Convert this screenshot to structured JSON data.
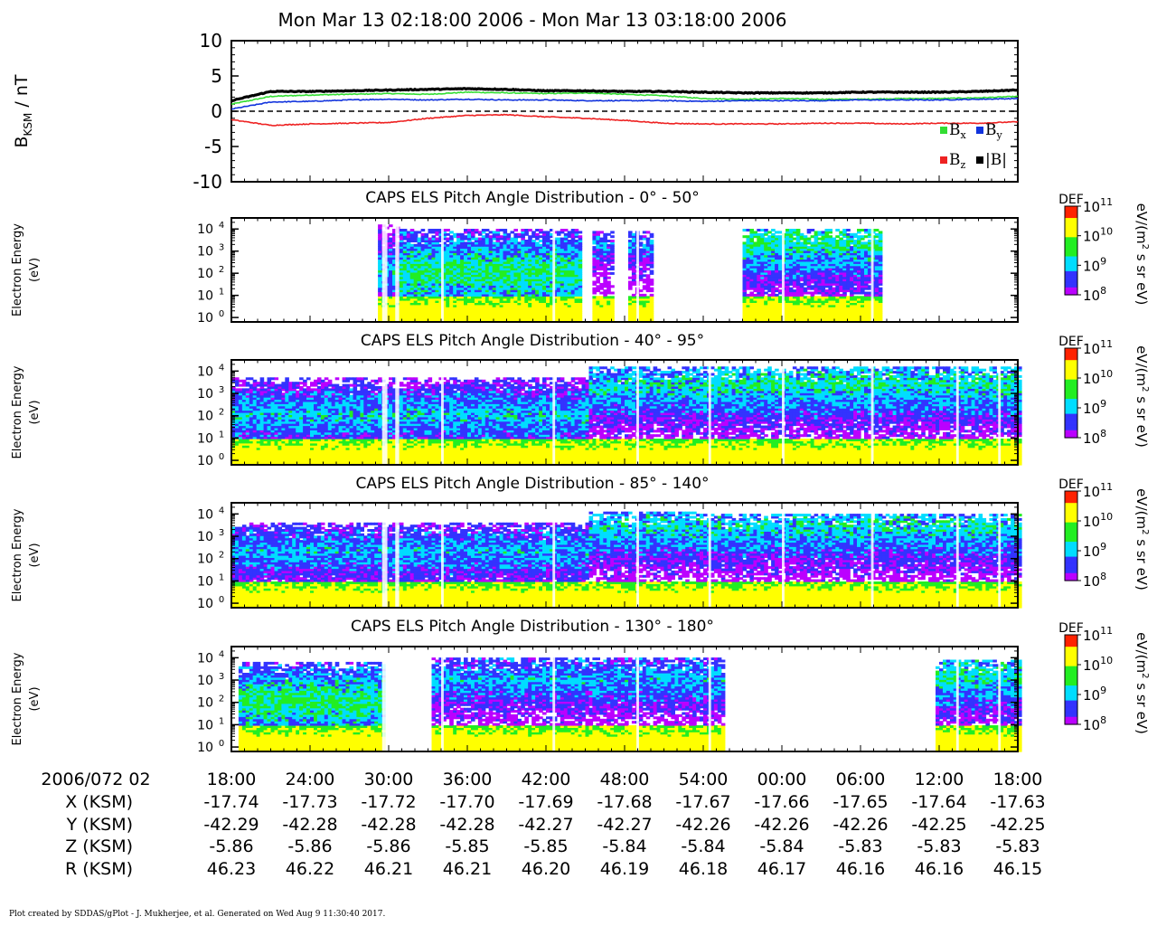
{
  "header": {
    "title": "Mon Mar 13 02:18:00 2006 - Mon Mar 13 03:18:00 2006"
  },
  "footer": {
    "text": "Plot created by SDDAS/gPlot - J. Mukherjee, et al.  Generated on Wed Aug 9 11:30:40 2017."
  },
  "colors": {
    "bx": "#33dd33",
    "by": "#1133dd",
    "bz": "#ee2222",
    "bmag": "#000000",
    "colormap": [
      "#bb00ff",
      "#3333ff",
      "#00ddff",
      "#22ee22",
      "#ffff00",
      "#ff2200"
    ]
  },
  "chart_data": [
    {
      "type": "line",
      "ylabel_main": "B",
      "ylabel_sub": "KSM",
      "ylabel_unit": " / nT",
      "ylim": [
        -10,
        10
      ],
      "y_ticks": [
        10,
        5,
        0,
        -5,
        -10
      ],
      "x_minutes": [
        0,
        3,
        6,
        9,
        12,
        15,
        18,
        21,
        24,
        27,
        30,
        33,
        36,
        39,
        42,
        45,
        48,
        51,
        54,
        57,
        60
      ],
      "reference_line": 0,
      "legend": [
        {
          "key": "bx",
          "main": "B",
          "sub": "x"
        },
        {
          "key": "by",
          "main": "B",
          "sub": "y"
        },
        {
          "key": "bz",
          "main": "B",
          "sub": "z"
        },
        {
          "key": "bmag",
          "main": "|B|",
          "sub": ""
        }
      ],
      "series": [
        {
          "key": "bx",
          "values": [
            1.0,
            2.1,
            2.3,
            2.4,
            2.5,
            2.4,
            2.7,
            2.6,
            2.5,
            2.6,
            2.4,
            2.2,
            1.8,
            1.7,
            1.8,
            1.7,
            1.7,
            1.8,
            1.8,
            1.9,
            2.1
          ]
        },
        {
          "key": "by",
          "values": [
            0.3,
            1.3,
            1.4,
            1.6,
            1.7,
            1.6,
            1.7,
            1.6,
            1.6,
            1.5,
            1.5,
            1.5,
            1.4,
            1.5,
            1.5,
            1.5,
            1.6,
            1.6,
            1.6,
            1.7,
            1.8
          ]
        },
        {
          "key": "bz",
          "values": [
            -1.2,
            -2.0,
            -1.8,
            -1.7,
            -1.6,
            -1.0,
            -0.6,
            -0.5,
            -0.8,
            -1.0,
            -1.3,
            -1.7,
            -1.8,
            -1.8,
            -1.8,
            -1.7,
            -1.7,
            -1.8,
            -1.7,
            -1.7,
            -1.5
          ]
        },
        {
          "key": "bmag",
          "values": [
            1.5,
            2.8,
            2.8,
            2.9,
            3.0,
            3.1,
            3.2,
            3.1,
            2.9,
            2.9,
            2.8,
            2.8,
            2.7,
            2.6,
            2.6,
            2.6,
            2.7,
            2.7,
            2.7,
            2.8,
            3.0
          ]
        }
      ]
    },
    {
      "type": "heatmap",
      "title": "CAPS ELS Pitch Angle Distribution - 0° - 50°",
      "ylabel": [
        "Electron Energy",
        "(eV)"
      ],
      "ylim_log10": [
        -0.2,
        4.5
      ],
      "y_ticks_log10": [
        4,
        3,
        2,
        1,
        0
      ],
      "colorbar": {
        "label": "DEF",
        "unit_lines": [
          "eV/(m",
          "2",
          " s sr eV)"
        ],
        "ticks_log10": [
          11,
          10,
          9,
          8
        ]
      },
      "segments": [
        {
          "t0": 11.0,
          "t1": 12.8,
          "lo": 0.0,
          "hi": 4.2,
          "peak": 9.0,
          "vcenter": 2.0
        },
        {
          "t0": 12.8,
          "t1": 26.5,
          "lo": 0.0,
          "hi": 4.0,
          "peak": 9.5,
          "vcenter": 2.0
        },
        {
          "t0": 27.3,
          "t1": 29.0,
          "lo": 0.0,
          "hi": 3.9,
          "peak": 8.8,
          "vcenter": 3.3
        },
        {
          "t0": 30.0,
          "t1": 32.0,
          "lo": 0.0,
          "hi": 3.9,
          "peak": 8.8,
          "vcenter": 3.3
        },
        {
          "t0": 39.0,
          "t1": 49.5,
          "lo": 0.0,
          "hi": 4.0,
          "peak": 9.4,
          "vcenter": 3.4
        }
      ]
    },
    {
      "type": "heatmap",
      "title": "CAPS ELS Pitch Angle Distribution - 40° - 95°",
      "ylabel": [
        "Electron Energy",
        "(eV)"
      ],
      "ylim_log10": [
        -0.2,
        4.5
      ],
      "y_ticks_log10": [
        4,
        3,
        2,
        1,
        0
      ],
      "colorbar": {
        "label": "DEF",
        "unit_lines": [
          "eV/(m",
          "2",
          " s sr eV)"
        ],
        "ticks_log10": [
          11,
          10,
          9,
          8
        ]
      },
      "segments": [
        {
          "t0": 0.0,
          "t1": 27.0,
          "lo": 0.0,
          "hi": 3.7,
          "peak": 9.1,
          "vcenter": 2.0
        },
        {
          "t0": 27.0,
          "t1": 36.0,
          "lo": 0.0,
          "hi": 4.2,
          "peak": 9.2,
          "vcenter": 3.3
        },
        {
          "t0": 36.0,
          "t1": 60.0,
          "lo": 0.0,
          "hi": 4.2,
          "peak": 9.3,
          "vcenter": 3.4
        }
      ]
    },
    {
      "type": "heatmap",
      "title": "CAPS ELS Pitch Angle Distribution - 85° - 140°",
      "ylabel": [
        "Electron Energy",
        "(eV)"
      ],
      "ylim_log10": [
        -0.2,
        4.5
      ],
      "y_ticks_log10": [
        4,
        3,
        2,
        1,
        0
      ],
      "colorbar": {
        "label": "DEF",
        "unit_lines": [
          "eV/(m",
          "2",
          " s sr eV)"
        ],
        "ticks_log10": [
          11,
          10,
          9,
          8
        ]
      },
      "segments": [
        {
          "t0": 0.0,
          "t1": 27.0,
          "lo": 0.0,
          "hi": 3.6,
          "peak": 9.0,
          "vcenter": 2.3
        },
        {
          "t0": 27.0,
          "t1": 36.0,
          "lo": 0.0,
          "hi": 4.1,
          "peak": 9.2,
          "vcenter": 3.4
        },
        {
          "t0": 36.0,
          "t1": 60.0,
          "lo": 0.0,
          "hi": 4.0,
          "peak": 9.2,
          "vcenter": 3.4
        }
      ]
    },
    {
      "type": "heatmap",
      "title": "CAPS ELS Pitch Angle Distribution - 130° - 180°",
      "ylabel": [
        "Electron Energy",
        "(eV)"
      ],
      "ylim_log10": [
        -0.2,
        4.5
      ],
      "y_ticks_log10": [
        4,
        3,
        2,
        1,
        0
      ],
      "colorbar": {
        "label": "DEF",
        "unit_lines": [
          "eV/(m",
          "2",
          " s sr eV)"
        ],
        "ticks_log10": [
          11,
          10,
          9,
          8
        ]
      },
      "segments": [
        {
          "t0": 0.5,
          "t1": 11.5,
          "lo": 0.0,
          "hi": 3.8,
          "peak": 9.5,
          "vcenter": 2.0
        },
        {
          "t0": 15.0,
          "t1": 37.5,
          "lo": 0.0,
          "hi": 4.0,
          "peak": 9.0,
          "vcenter": 3.0
        },
        {
          "t0": 53.5,
          "t1": 60.0,
          "lo": 0.0,
          "hi": 3.9,
          "peak": 9.3,
          "vcenter": 3.2
        }
      ]
    }
  ],
  "time_axis": {
    "date_label": "2006/072 02",
    "ticks": [
      "18:00",
      "24:00",
      "30:00",
      "36:00",
      "42:00",
      "48:00",
      "54:00",
      "00:00",
      "06:00",
      "12:00",
      "18:00"
    ],
    "rows": [
      {
        "label": "X (KSM)",
        "values": [
          "-17.74",
          "-17.73",
          "-17.72",
          "-17.70",
          "-17.69",
          "-17.68",
          "-17.67",
          "-17.66",
          "-17.65",
          "-17.64",
          "-17.63"
        ]
      },
      {
        "label": "Y (KSM)",
        "values": [
          "-42.29",
          "-42.28",
          "-42.28",
          "-42.28",
          "-42.27",
          "-42.27",
          "-42.26",
          "-42.26",
          "-42.26",
          "-42.25",
          "-42.25"
        ]
      },
      {
        "label": "Z (KSM)",
        "values": [
          "-5.86",
          "-5.86",
          "-5.86",
          "-5.85",
          "-5.85",
          "-5.84",
          "-5.84",
          "-5.84",
          "-5.83",
          "-5.83",
          "-5.83"
        ]
      },
      {
        "label": "R (KSM)",
        "values": [
          "46.23",
          "46.22",
          "46.21",
          "46.21",
          "46.20",
          "46.19",
          "46.18",
          "46.17",
          "46.16",
          "46.16",
          "46.15"
        ]
      }
    ]
  }
}
